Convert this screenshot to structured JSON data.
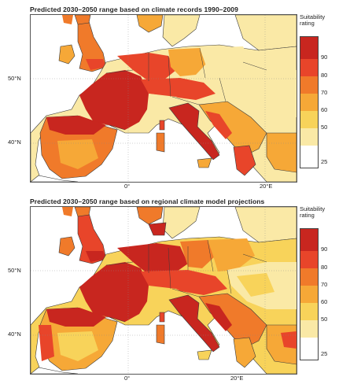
{
  "panels": [
    {
      "title": "Predicted 2030–2050 range based on climate records 1990–2009",
      "lat_labels": [
        "50°N",
        "40°N"
      ],
      "lon_labels": [
        "0°",
        "20°E"
      ]
    },
    {
      "title": "Predicted 2030–2050 range based on regional climate model projections",
      "lat_labels": [
        "50°N",
        "40°N"
      ],
      "lon_labels": [
        "0°",
        "20°E"
      ]
    }
  ],
  "legend": {
    "title_line1": "Suitability",
    "title_line2": "rating",
    "labels_top": [
      "90",
      "80",
      "70",
      "60",
      "50",
      "25"
    ],
    "labels_bottom": [
      "90",
      "80",
      "70",
      "60",
      "50",
      "25"
    ],
    "colors": [
      "#c8261f",
      "#e8452a",
      "#f07a2a",
      "#f6a837",
      "#f8d35a",
      "#fae9a6",
      "#ffffff"
    ]
  },
  "colors": {
    "sea": "#ffffff",
    "border": "#3a3a3a",
    "very_high": "#c8261f",
    "high": "#e8452a",
    "mid_high": "#f07a2a",
    "mid": "#f6a837",
    "low": "#f8d35a",
    "very_low": "#fae9a6"
  }
}
